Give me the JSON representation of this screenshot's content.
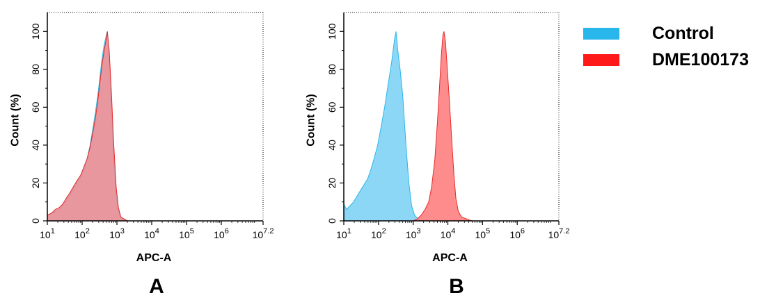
{
  "chart_data": [
    {
      "type": "area",
      "panel_label": "A",
      "xlabel": "APC-A",
      "ylabel": "Count  (%)",
      "x_scale": "log10",
      "xlim": [
        10,
        15848931
      ],
      "ylim": [
        0,
        110
      ],
      "x_ticks": [
        {
          "base": "10",
          "exp": "1",
          "value": 10
        },
        {
          "base": "10",
          "exp": "2",
          "value": 100
        },
        {
          "base": "10",
          "exp": "3",
          "value": 1000
        },
        {
          "base": "10",
          "exp": "4",
          "value": 10000
        },
        {
          "base": "10",
          "exp": "5",
          "value": 100000
        },
        {
          "base": "10",
          "exp": "6",
          "value": 1000000
        },
        {
          "base": "10",
          "exp": "7.2",
          "value": 15848931
        }
      ],
      "y_ticks": [
        {
          "label": "0",
          "value": 0
        },
        {
          "label": "20",
          "value": 20
        },
        {
          "label": "40",
          "value": 40
        },
        {
          "label": "60",
          "value": 60
        },
        {
          "label": "80",
          "value": 80
        },
        {
          "label": "100",
          "value": 100
        }
      ],
      "series": [
        {
          "name": "Control",
          "color": "#29b6ea",
          "fill": "#7fd3f4",
          "points": [
            [
              10,
              3
            ],
            [
              13,
              4
            ],
            [
              17,
              5
            ],
            [
              22,
              6
            ],
            [
              28,
              8
            ],
            [
              35,
              11
            ],
            [
              45,
              14
            ],
            [
              56,
              17
            ],
            [
              70,
              20
            ],
            [
              90,
              23
            ],
            [
              110,
              27
            ],
            [
              140,
              33
            ],
            [
              170,
              40
            ],
            [
              200,
              48
            ],
            [
              240,
              57
            ],
            [
              280,
              66
            ],
            [
              320,
              75
            ],
            [
              370,
              85
            ],
            [
              430,
              93
            ],
            [
              480,
              97
            ],
            [
              530,
              100
            ],
            [
              600,
              88
            ],
            [
              700,
              60
            ],
            [
              800,
              35
            ],
            [
              950,
              14
            ],
            [
              1100,
              5
            ],
            [
              1300,
              2
            ],
            [
              1600,
              1
            ],
            [
              2000,
              0
            ],
            [
              4000,
              0
            ],
            [
              10000,
              0
            ]
          ]
        },
        {
          "name": "DME100173",
          "color": "#e52929",
          "fill": "#ff7f7f",
          "points": [
            [
              10,
              3
            ],
            [
              13,
              4
            ],
            [
              17,
              6
            ],
            [
              22,
              7
            ],
            [
              28,
              9
            ],
            [
              35,
              12
            ],
            [
              45,
              15
            ],
            [
              56,
              18
            ],
            [
              70,
              21
            ],
            [
              90,
              24
            ],
            [
              110,
              28
            ],
            [
              140,
              33
            ],
            [
              170,
              39
            ],
            [
              200,
              46
            ],
            [
              240,
              54
            ],
            [
              280,
              63
            ],
            [
              320,
              72
            ],
            [
              370,
              82
            ],
            [
              430,
              90
            ],
            [
              480,
              95
            ],
            [
              530,
              100
            ],
            [
              600,
              90
            ],
            [
              700,
              66
            ],
            [
              800,
              42
            ],
            [
              950,
              18
            ],
            [
              1100,
              7
            ],
            [
              1300,
              2
            ],
            [
              1600,
              1
            ],
            [
              2000,
              0
            ],
            [
              4000,
              0
            ],
            [
              10000,
              0
            ]
          ]
        }
      ]
    },
    {
      "type": "area",
      "panel_label": "B",
      "xlabel": "APC-A",
      "ylabel": "Count  (%)",
      "x_scale": "log10",
      "xlim": [
        10,
        15848931
      ],
      "ylim": [
        0,
        110
      ],
      "x_ticks": [
        {
          "base": "10",
          "exp": "1",
          "value": 10
        },
        {
          "base": "10",
          "exp": "2",
          "value": 100
        },
        {
          "base": "10",
          "exp": "3",
          "value": 1000
        },
        {
          "base": "10",
          "exp": "4",
          "value": 10000
        },
        {
          "base": "10",
          "exp": "5",
          "value": 100000
        },
        {
          "base": "10",
          "exp": "6",
          "value": 1000000
        },
        {
          "base": "10",
          "exp": "7.2",
          "value": 15848931
        }
      ],
      "y_ticks": [
        {
          "label": "0",
          "value": 0
        },
        {
          "label": "20",
          "value": 20
        },
        {
          "label": "40",
          "value": 40
        },
        {
          "label": "60",
          "value": 60
        },
        {
          "label": "80",
          "value": 80
        },
        {
          "label": "100",
          "value": 100
        }
      ],
      "series": [
        {
          "name": "Control",
          "color": "#29b6ea",
          "fill": "#7fd3f4",
          "points": [
            [
              10,
              9
            ],
            [
              12,
              6
            ],
            [
              15,
              8
            ],
            [
              19,
              10
            ],
            [
              24,
              13
            ],
            [
              30,
              16
            ],
            [
              38,
              19
            ],
            [
              48,
              22
            ],
            [
              60,
              27
            ],
            [
              75,
              33
            ],
            [
              95,
              40
            ],
            [
              120,
              50
            ],
            [
              150,
              60
            ],
            [
              190,
              72
            ],
            [
              240,
              84
            ],
            [
              290,
              96
            ],
            [
              320,
              100
            ],
            [
              360,
              90
            ],
            [
              420,
              80
            ],
            [
              500,
              66
            ],
            [
              620,
              40
            ],
            [
              750,
              20
            ],
            [
              900,
              8
            ],
            [
              1100,
              3
            ],
            [
              1400,
              1
            ],
            [
              2000,
              0
            ],
            [
              10000,
              0
            ]
          ]
        },
        {
          "name": "DME100173",
          "color": "#e52929",
          "fill": "#ff7f7f",
          "points": [
            [
              1000,
              0
            ],
            [
              1300,
              1
            ],
            [
              1700,
              3
            ],
            [
              2200,
              6
            ],
            [
              2800,
              10
            ],
            [
              3400,
              18
            ],
            [
              4200,
              32
            ],
            [
              5000,
              52
            ],
            [
              5800,
              72
            ],
            [
              6500,
              88
            ],
            [
              7200,
              98
            ],
            [
              7700,
              100
            ],
            [
              8500,
              95
            ],
            [
              9500,
              82
            ],
            [
              11000,
              64
            ],
            [
              13000,
              42
            ],
            [
              15000,
              24
            ],
            [
              17000,
              12
            ],
            [
              20000,
              5
            ],
            [
              25000,
              2
            ],
            [
              35000,
              1
            ],
            [
              50000,
              0
            ]
          ]
        }
      ]
    }
  ],
  "legend": {
    "placement": "top-right",
    "items": [
      {
        "label": "Control",
        "color": "#29b6ea"
      },
      {
        "label": "DME100173",
        "color": "#ff1a1a"
      }
    ]
  }
}
